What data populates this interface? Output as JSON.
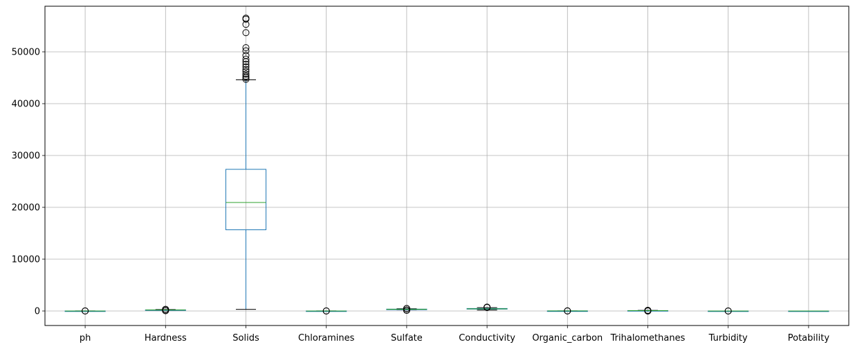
{
  "chart_data": {
    "type": "boxplot",
    "title": "",
    "xlabel": "",
    "ylabel": "",
    "ylim": [
      -2800,
      58800
    ],
    "yticks": [
      0,
      10000,
      20000,
      30000,
      40000,
      50000
    ],
    "grid": true,
    "legend": "none",
    "colors": {
      "box": "#1f77b4",
      "median": "#2ca02c",
      "cap": "#000000",
      "flier": "#000000",
      "grid": "#b0b0b0"
    },
    "categories": [
      "ph",
      "Hardness",
      "Solids",
      "Chloramines",
      "Sulfate",
      "Conductivity",
      "Organic_carbon",
      "Trihalomethanes",
      "Turbidity",
      "Potability"
    ],
    "boxes": [
      {
        "name": "ph",
        "whislo": 3,
        "q1": 6,
        "med": 7,
        "q3": 8,
        "whishi": 11,
        "fliers": [
          0,
          14
        ]
      },
      {
        "name": "Hardness",
        "whislo": 118,
        "q1": 177,
        "med": 197,
        "q3": 217,
        "whishi": 276,
        "fliers": [
          47,
          100,
          300,
          323
        ]
      },
      {
        "name": "Solids",
        "whislo": 320,
        "q1": 15667,
        "med": 20928,
        "q3": 27332,
        "whishi": 44600,
        "fliers": [
          44700,
          45000,
          45300,
          45700,
          46200,
          46600,
          47100,
          47600,
          48100,
          48600,
          49300,
          50200,
          50800,
          53700,
          55300,
          56300,
          56500
        ]
      },
      {
        "name": "Chloramines",
        "whislo": 3,
        "q1": 6,
        "med": 7,
        "q3": 8,
        "whishi": 11,
        "fliers": [
          0.4,
          13
        ]
      },
      {
        "name": "Sulfate",
        "whislo": 230,
        "q1": 308,
        "med": 333,
        "q3": 360,
        "whishi": 438,
        "fliers": [
          129,
          180,
          460,
          481
        ]
      },
      {
        "name": "Conductivity",
        "whislo": 181,
        "q1": 366,
        "med": 422,
        "q3": 482,
        "whishi": 656,
        "fliers": [
          680,
          700,
          753
        ]
      },
      {
        "name": "Organic_carbon",
        "whislo": 5,
        "q1": 12,
        "med": 14,
        "q3": 17,
        "whishi": 24,
        "fliers": [
          2,
          28
        ]
      },
      {
        "name": "Trihalomethanes",
        "whislo": 23,
        "q1": 56,
        "med": 66,
        "q3": 77,
        "whishi": 109,
        "fliers": [
          1,
          10,
          115,
          124
        ]
      },
      {
        "name": "Turbidity",
        "whislo": 1.8,
        "q1": 3.4,
        "med": 4,
        "q3": 4.5,
        "whishi": 6.1,
        "fliers": [
          1.4,
          6.7
        ]
      },
      {
        "name": "Potability",
        "whislo": 0,
        "q1": 0,
        "med": 0,
        "q3": 1,
        "whishi": 1,
        "fliers": []
      }
    ]
  }
}
